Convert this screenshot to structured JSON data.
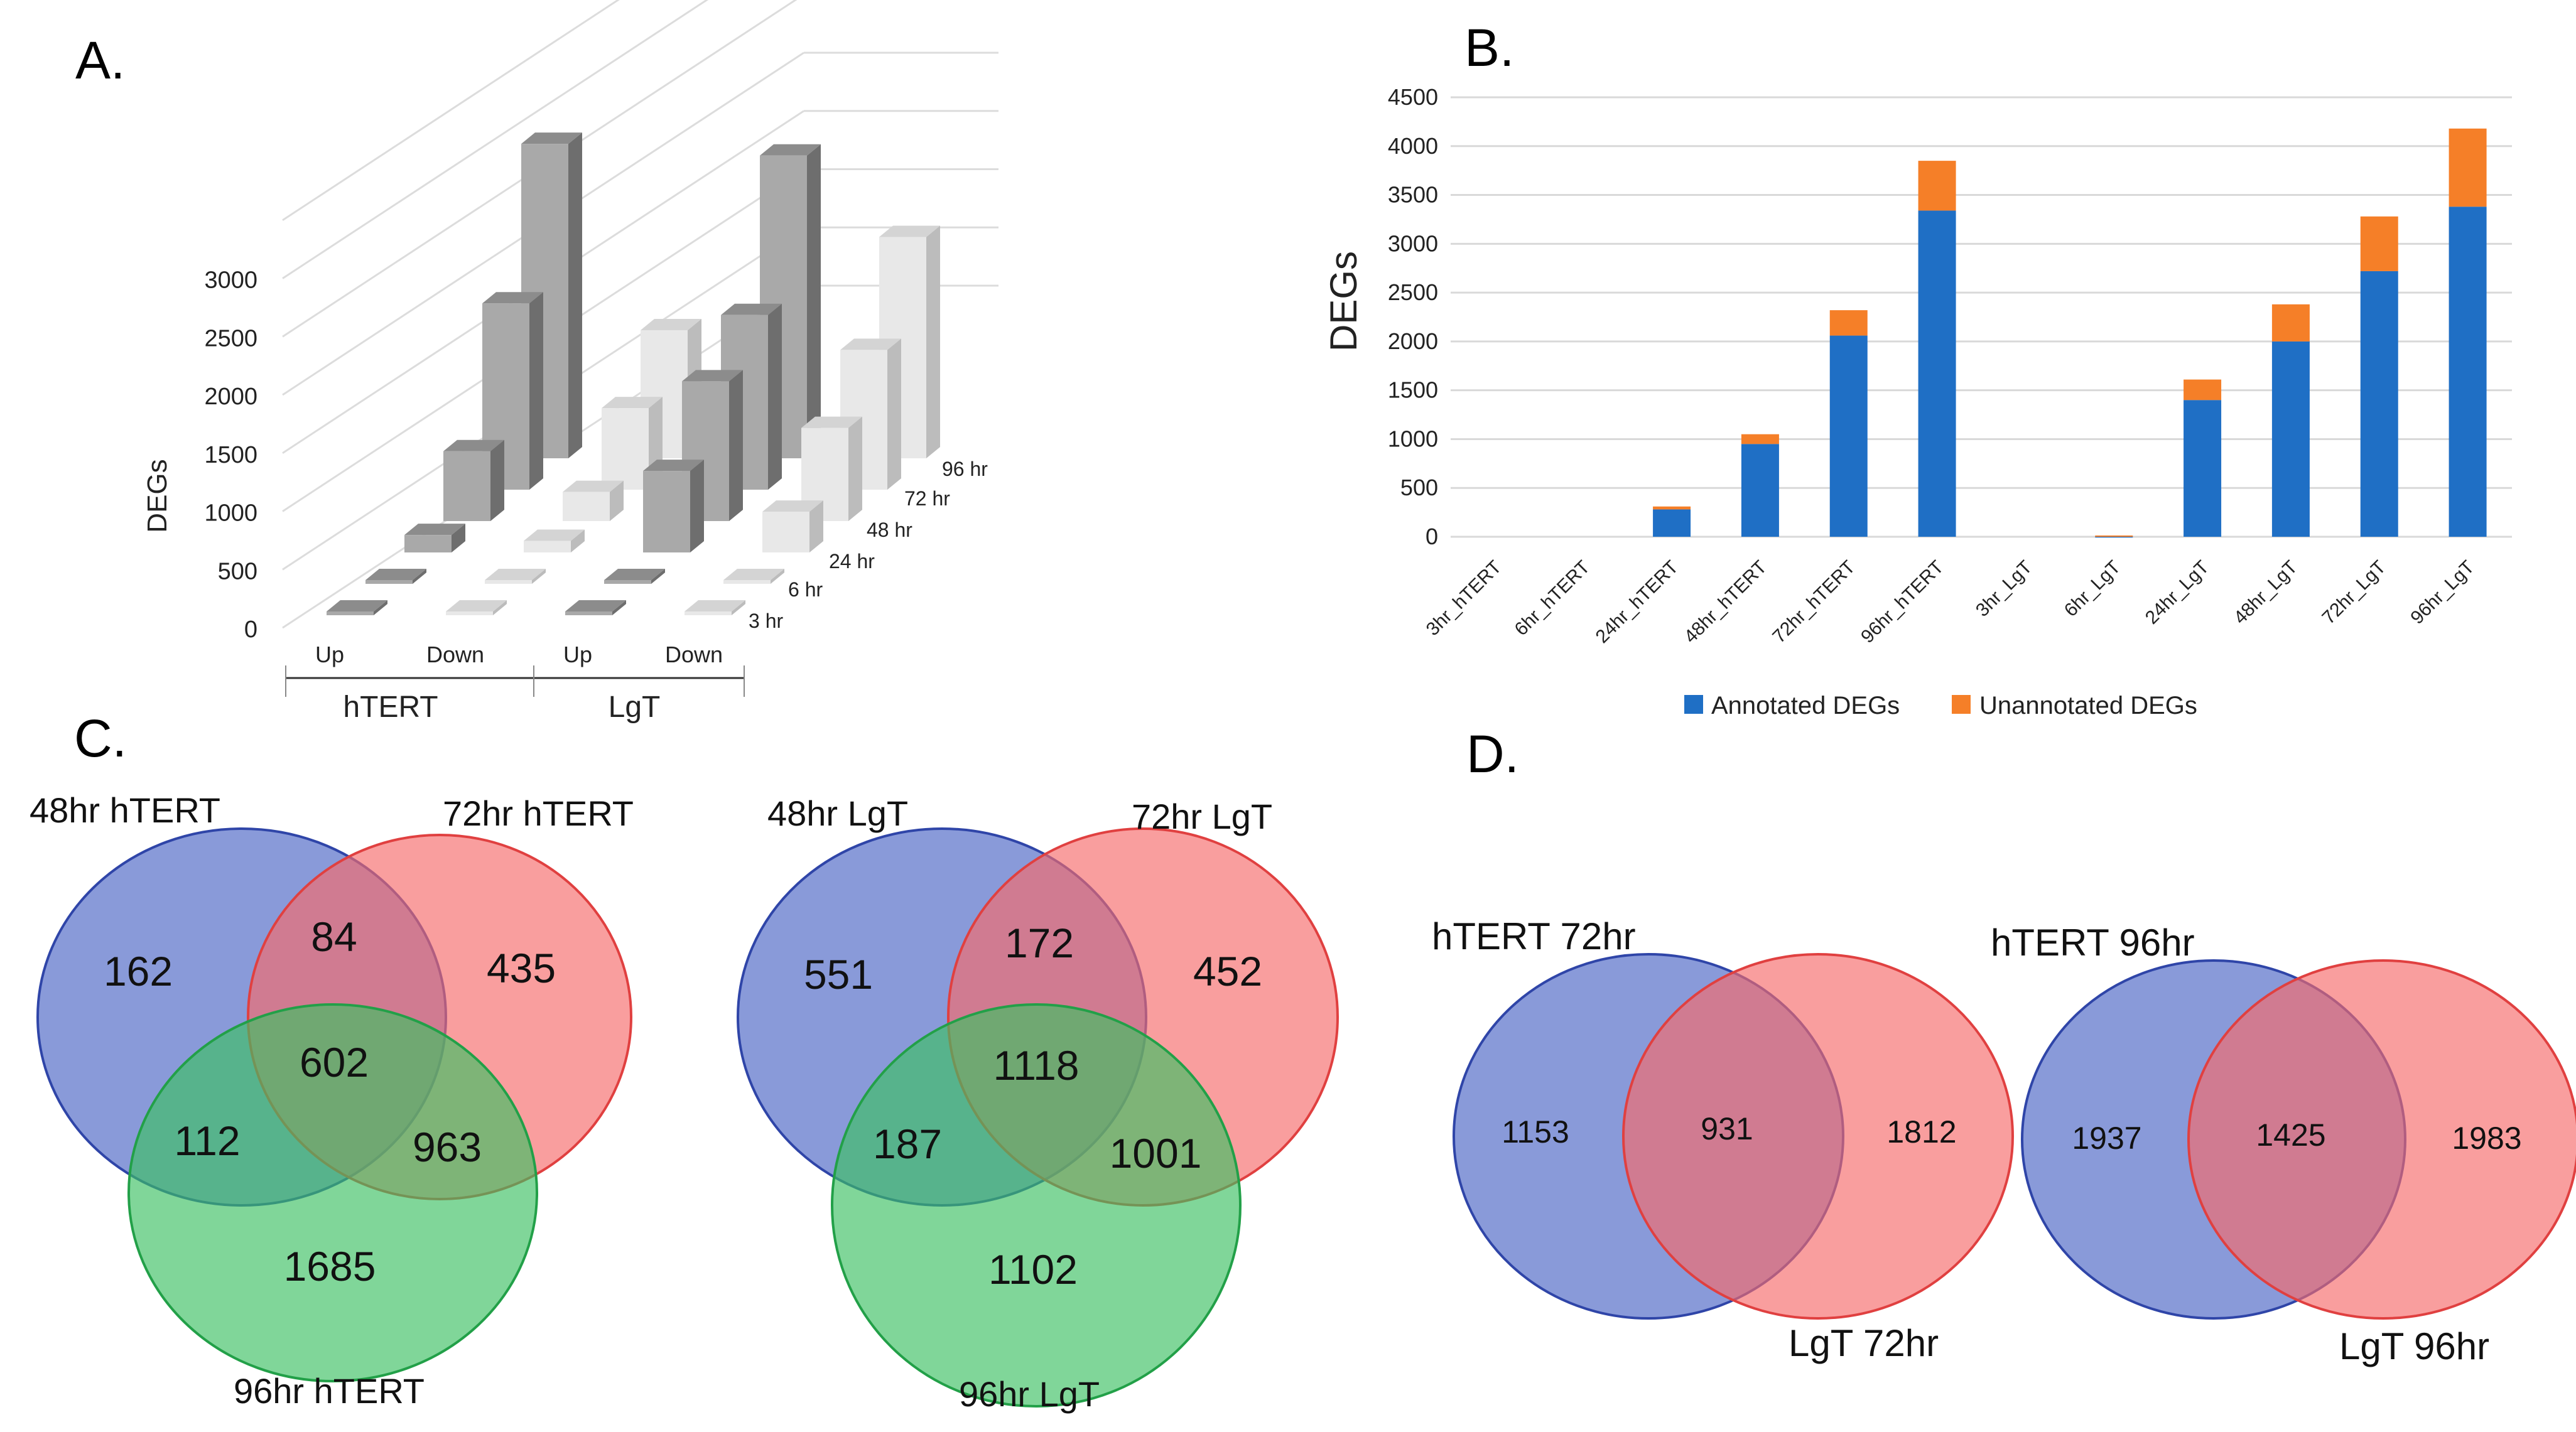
{
  "panels": {
    "a": "A.",
    "b": "B.",
    "c": "C.",
    "d": "D."
  },
  "chart_data": [
    {
      "type": "bar",
      "subtype": "3d-bar",
      "panel": "A.",
      "ylabel": "DEGs",
      "yticks": [
        "0",
        "500",
        "1000",
        "1500",
        "2000",
        "2500",
        "3000"
      ],
      "ylim": [
        0,
        3000
      ],
      "categories": [
        "Up",
        "Down",
        "Up",
        "Down"
      ],
      "groups": [
        "hTERT",
        "LgT"
      ],
      "depth_labels": [
        "3 hr",
        "6 hr",
        "24 hr",
        "48 hr",
        "72 hr",
        "96 hr"
      ],
      "series": [
        {
          "name": "3 hr",
          "values": [
            0,
            0,
            0,
            0
          ]
        },
        {
          "name": "6 hr",
          "values": [
            0,
            0,
            0,
            0
          ]
        },
        {
          "name": "24 hr",
          "values": [
            150,
            100,
            700,
            350
          ]
        },
        {
          "name": "48 hr",
          "values": [
            600,
            250,
            1200,
            800
          ]
        },
        {
          "name": "72 hr",
          "values": [
            1600,
            700,
            1500,
            1200
          ]
        },
        {
          "name": "96 hr",
          "values": [
            2700,
            1100,
            2600,
            1900
          ]
        }
      ]
    },
    {
      "type": "bar",
      "subtype": "stacked",
      "panel": "B.",
      "ylabel": "DEGs",
      "ylim": [
        0,
        4500
      ],
      "yticks": [
        "0",
        "500",
        "1000",
        "1500",
        "2000",
        "2500",
        "3000",
        "3500",
        "4000",
        "4500"
      ],
      "categories": [
        "3hr_hTERT",
        "6hr_hTERT",
        "24hr_hTERT",
        "48hr_hTERT",
        "72hr_hTERT",
        "96hr_hTERT",
        "3hr_LgT",
        "6hr_LgT",
        "24hr_LgT",
        "48hr_LgT",
        "72hr_LgT",
        "96hr_LgT"
      ],
      "series": [
        {
          "name": "Annotated DEGs",
          "color": "#1f6fc5",
          "values": [
            0,
            0,
            280,
            950,
            2060,
            3340,
            0,
            5,
            1400,
            2000,
            2720,
            3380
          ]
        },
        {
          "name": "Unannotated DEGs",
          "color": "#f57f28",
          "values": [
            0,
            0,
            30,
            100,
            260,
            510,
            0,
            8,
            210,
            380,
            560,
            800
          ]
        }
      ],
      "legend": [
        "Annotated DEGs",
        "Unannotated DEGs"
      ]
    }
  ],
  "venn_c1": {
    "set_a": "48hr hTERT",
    "set_b": "72hr hTERT",
    "set_c": "96hr hTERT",
    "a_only": "162",
    "ab": "84",
    "b_only": "435",
    "abc": "602",
    "ac": "112",
    "bc": "963",
    "c_only": "1685"
  },
  "venn_c2": {
    "set_a": "48hr LgT",
    "set_b": "72hr LgT",
    "set_c": "96hr LgT",
    "a_only": "551",
    "ab": "172",
    "b_only": "452",
    "abc": "1118",
    "ac": "187",
    "bc": "1001",
    "c_only": "1102"
  },
  "venn_d1": {
    "set_a": "hTERT 72hr",
    "set_b": "LgT 72hr",
    "a_only": "1153",
    "ab": "931",
    "b_only": "1812"
  },
  "venn_d2": {
    "set_a": "hTERT 96hr",
    "set_b": "LgT 96hr",
    "a_only": "1937",
    "ab": "1425",
    "b_only": "1983"
  },
  "colors": {
    "blue": "#4a64c4",
    "red": "#f66a6a",
    "green": "#3cc062",
    "annotated": "#1f6fc5",
    "unannotated": "#f57f28"
  }
}
